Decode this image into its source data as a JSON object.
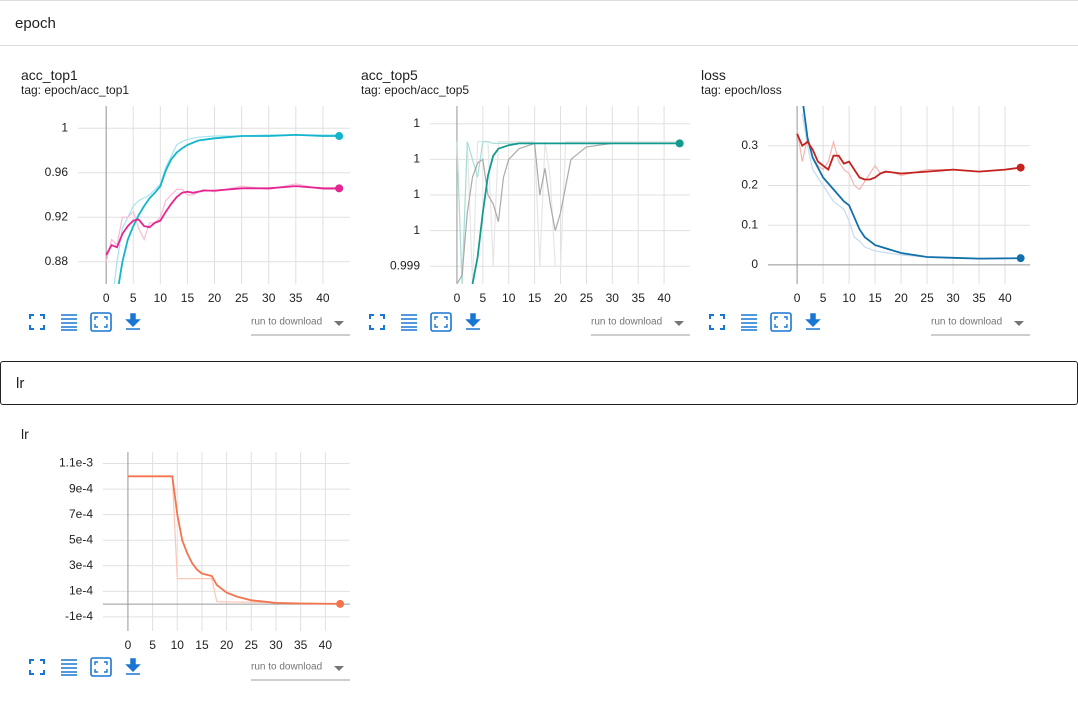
{
  "sections": [
    {
      "name": "epoch",
      "cards": [
        {
          "title": "acc_top1",
          "tag": "tag: epoch/acc_top1",
          "download": "run to download",
          "chart": {
            "type": "line",
            "xlim": [
              -5.2,
              45
            ],
            "ylim": [
              0.86,
              1.02
            ],
            "xticks": [
              0,
              5,
              10,
              15,
              20,
              25,
              30,
              35,
              40
            ],
            "yticks": [
              0.88,
              0.92,
              0.96,
              1
            ],
            "grid": true,
            "series": [
              {
                "color": "#a6e4ee",
                "x": [
                  1,
                  2,
                  3,
                  4,
                  5,
                  6,
                  8,
                  10,
                  11,
                  12,
                  13,
                  14,
                  15,
                  17,
                  20,
                  25,
                  30,
                  35,
                  40,
                  43
                ],
                "values": [
                  0.84,
                  0.88,
                  0.91,
                  0.92,
                  0.93,
                  0.935,
                  0.94,
                  0.95,
                  0.965,
                  0.975,
                  0.985,
                  0.988,
                  0.99,
                  0.992,
                  0.993,
                  0.993,
                  0.994,
                  0.994,
                  0.994,
                  0.994
                ]
              },
              {
                "color": "#f7bcd6",
                "x": [
                  0,
                  1,
                  2,
                  3,
                  4,
                  5,
                  6,
                  7,
                  8,
                  9,
                  10,
                  11,
                  12,
                  13,
                  14,
                  15,
                  16,
                  18,
                  20,
                  25,
                  30,
                  35,
                  40,
                  43
                ],
                "values": [
                  0.88,
                  0.9,
                  0.895,
                  0.92,
                  0.92,
                  0.925,
                  0.91,
                  0.9,
                  0.915,
                  0.915,
                  0.92,
                  0.935,
                  0.94,
                  0.945,
                  0.945,
                  0.94,
                  0.94,
                  0.945,
                  0.943,
                  0.948,
                  0.945,
                  0.95,
                  0.945,
                  0.945
                ]
              },
              {
                "color": "#12b5cb",
                "end_marker": true,
                "x": [
                  1,
                  2,
                  3,
                  4,
                  5,
                  6,
                  7,
                  8,
                  9,
                  10,
                  11,
                  12,
                  13,
                  14,
                  15,
                  17,
                  20,
                  25,
                  30,
                  35,
                  40,
                  43
                ],
                "values": [
                  0.8,
                  0.85,
                  0.88,
                  0.9,
                  0.912,
                  0.922,
                  0.93,
                  0.937,
                  0.942,
                  0.948,
                  0.962,
                  0.972,
                  0.978,
                  0.982,
                  0.985,
                  0.989,
                  0.991,
                  0.993,
                  0.993,
                  0.994,
                  0.993,
                  0.993
                ]
              },
              {
                "color": "#e52592",
                "end_marker": true,
                "x": [
                  0,
                  1,
                  2,
                  3,
                  4,
                  5,
                  6,
                  7,
                  8,
                  9,
                  10,
                  11,
                  12,
                  13,
                  14,
                  15,
                  16,
                  18,
                  20,
                  25,
                  30,
                  35,
                  40,
                  43
                ],
                "values": [
                  0.886,
                  0.895,
                  0.893,
                  0.905,
                  0.912,
                  0.917,
                  0.918,
                  0.912,
                  0.911,
                  0.915,
                  0.917,
                  0.925,
                  0.932,
                  0.938,
                  0.942,
                  0.943,
                  0.942,
                  0.944,
                  0.944,
                  0.946,
                  0.946,
                  0.948,
                  0.946,
                  0.946
                ]
              }
            ]
          }
        },
        {
          "title": "acc_top5",
          "tag": "tag: epoch/acc_top5",
          "download": "run to download",
          "chart": {
            "type": "line",
            "xlim": [
              -5.2,
              45
            ],
            "ylim": [
              0.9989,
              0.9999
            ],
            "xticks": [
              0,
              5,
              10,
              15,
              20,
              25,
              30,
              35,
              40
            ],
            "yticks": [
              {
                "value": 0.999,
                "label": "0.999"
              },
              {
                "value": 0.9992,
                "label": "1"
              },
              {
                "value": 0.9994,
                "label": "1"
              },
              {
                "value": 0.9996,
                "label": "1"
              },
              {
                "value": 0.9998,
                "label": "1"
              }
            ],
            "grid": true,
            "series": [
              {
                "color": "#e6e6e6",
                "x": [
                  0,
                  1,
                  2,
                  3,
                  4,
                  5,
                  6,
                  7,
                  8,
                  10,
                  14,
                  15,
                  16,
                  17,
                  18,
                  19,
                  20,
                  21,
                  43
                ],
                "values": [
                  0.9997,
                  0.9989,
                  0.9997,
                  0.9989,
                  0.9997,
                  0.9997,
                  0.9997,
                  0.999,
                  0.9997,
                  0.9997,
                  0.9997,
                  0.9997,
                  0.999,
                  0.9997,
                  0.9995,
                  0.999,
                  0.999,
                  0.9997,
                  0.9997
                ]
              },
              {
                "color": "#a9dfd8",
                "x": [
                  0,
                  1,
                  2,
                  3,
                  4,
                  5,
                  6,
                  7,
                  43
                ],
                "values": [
                  0.9997,
                  0.9989,
                  0.9997,
                  0.9996,
                  0.9995,
                  0.9997,
                  0.9997,
                  0.99969,
                  0.99969
                ]
              },
              {
                "color": "#aaaaaa",
                "x": [
                  0,
                  1,
                  2,
                  3,
                  4,
                  5,
                  6,
                  7,
                  8,
                  9,
                  10,
                  12,
                  14,
                  15,
                  16,
                  17,
                  18,
                  19,
                  20,
                  22,
                  25,
                  30,
                  35,
                  43
                ],
                "values": [
                  0.9989,
                  0.99895,
                  0.9993,
                  0.9995,
                  0.99958,
                  0.9996,
                  0.9994,
                  0.99935,
                  0.99925,
                  0.9995,
                  0.9996,
                  0.99966,
                  0.99968,
                  0.99969,
                  0.9994,
                  0.99955,
                  0.99935,
                  0.9992,
                  0.9993,
                  0.9996,
                  0.99967,
                  0.99969,
                  0.99969,
                  0.99969
                ]
              },
              {
                "color": "#129a8e",
                "end_marker": true,
                "x": [
                  3,
                  4,
                  5,
                  6,
                  7,
                  8,
                  10,
                  12,
                  15,
                  20,
                  43
                ],
                "values": [
                  0.9989,
                  0.99905,
                  0.9993,
                  0.99951,
                  0.99962,
                  0.99966,
                  0.99968,
                  0.99969,
                  0.99969,
                  0.99969,
                  0.99969
                ]
              }
            ]
          }
        },
        {
          "title": "loss",
          "tag": "tag: epoch/loss",
          "download": "run to download",
          "chart": {
            "type": "line",
            "xlim": [
              -5.6,
              44.8
            ],
            "ylim": [
              -0.048,
              0.4
            ],
            "xticks": [
              0,
              5,
              10,
              15,
              20,
              25,
              30,
              35,
              40
            ],
            "yticks": [
              0,
              0.1,
              0.2,
              0.3
            ],
            "grid": true,
            "series": [
              {
                "color": "#c6dbef",
                "x": [
                  1,
                  2,
                  3,
                  5,
                  7,
                  9,
                  10,
                  11,
                  12,
                  13,
                  15,
                  20,
                  25,
                  30,
                  35,
                  43
                ],
                "values": [
                  0.38,
                  0.3,
                  0.24,
                  0.2,
                  0.16,
                  0.14,
                  0.11,
                  0.07,
                  0.06,
                  0.045,
                  0.035,
                  0.025,
                  0.02,
                  0.018,
                  0.016,
                  0.017
                ]
              },
              {
                "color": "#f4b6b0",
                "x": [
                  0,
                  1,
                  2,
                  3,
                  4,
                  5,
                  6,
                  7,
                  8,
                  9,
                  10,
                  11,
                  12,
                  13,
                  14,
                  15,
                  16,
                  18,
                  20,
                  25,
                  30,
                  35,
                  40,
                  43
                ],
                "values": [
                  0.34,
                  0.26,
                  0.32,
                  0.27,
                  0.25,
                  0.24,
                  0.26,
                  0.31,
                  0.26,
                  0.24,
                  0.23,
                  0.2,
                  0.19,
                  0.21,
                  0.23,
                  0.25,
                  0.23,
                  0.235,
                  0.225,
                  0.24,
                  0.24,
                  0.235,
                  0.24,
                  0.245
                ]
              },
              {
                "color": "#1170aa",
                "end_marker": true,
                "x": [
                  1,
                  2,
                  3,
                  5,
                  7,
                  9,
                  10,
                  11,
                  12,
                  13,
                  15,
                  20,
                  25,
                  30,
                  35,
                  43
                ],
                "values": [
                  0.42,
                  0.32,
                  0.27,
                  0.22,
                  0.19,
                  0.16,
                  0.15,
                  0.12,
                  0.09,
                  0.07,
                  0.05,
                  0.03,
                  0.02,
                  0.018,
                  0.016,
                  0.017
                ]
              },
              {
                "color": "#c5221f",
                "end_marker": true,
                "x": [
                  0,
                  1,
                  2,
                  3,
                  4,
                  5,
                  6,
                  7,
                  8,
                  9,
                  10,
                  11,
                  12,
                  13,
                  14,
                  15,
                  16,
                  17,
                  20,
                  25,
                  30,
                  35,
                  40,
                  43
                ],
                "values": [
                  0.33,
                  0.3,
                  0.31,
                  0.29,
                  0.26,
                  0.25,
                  0.24,
                  0.275,
                  0.275,
                  0.255,
                  0.26,
                  0.24,
                  0.22,
                  0.215,
                  0.215,
                  0.22,
                  0.23,
                  0.235,
                  0.23,
                  0.235,
                  0.24,
                  0.235,
                  0.24,
                  0.245
                ]
              }
            ]
          }
        }
      ]
    },
    {
      "name": "lr",
      "cards": [
        {
          "title": "lr",
          "download": "run to download",
          "chart": {
            "type": "line",
            "xlim": [
              -5.05,
              45
            ],
            "ylim": [
              -0.00021,
              0.00119
            ],
            "xticks": [
              0,
              5,
              10,
              15,
              20,
              25,
              30,
              35,
              40
            ],
            "yticks": [
              {
                "value": -0.0001,
                "label": "-1e-4"
              },
              {
                "value": 0.0001,
                "label": "1e-4"
              },
              {
                "value": 0.0003,
                "label": "3e-4"
              },
              {
                "value": 0.0005,
                "label": "5e-4"
              },
              {
                "value": 0.0007,
                "label": "7e-4"
              },
              {
                "value": 0.0009,
                "label": "9e-4"
              },
              {
                "value": 0.0011,
                "label": "1.1e-3"
              }
            ],
            "grid": true,
            "series": [
              {
                "color": "#fbc7b6",
                "x": [
                  0,
                  9,
                  10,
                  17,
                  18,
                  43
                ],
                "values": [
                  0.001,
                  0.001,
                  0.0002,
                  0.0002,
                  2e-05,
                  2e-06
                ]
              },
              {
                "color": "#f4754d",
                "end_marker": true,
                "x": [
                  0,
                  9,
                  10,
                  11,
                  12,
                  13,
                  14,
                  15,
                  17,
                  18,
                  20,
                  22,
                  25,
                  30,
                  35,
                  43
                ],
                "values": [
                  0.001,
                  0.001,
                  0.0007,
                  0.0005,
                  0.0004,
                  0.00032,
                  0.00027,
                  0.00024,
                  0.00022,
                  0.00015,
                  9e-05,
                  6e-05,
                  3e-05,
                  1e-05,
                  5e-06,
                  2e-06
                ]
              }
            ]
          }
        }
      ]
    }
  ]
}
